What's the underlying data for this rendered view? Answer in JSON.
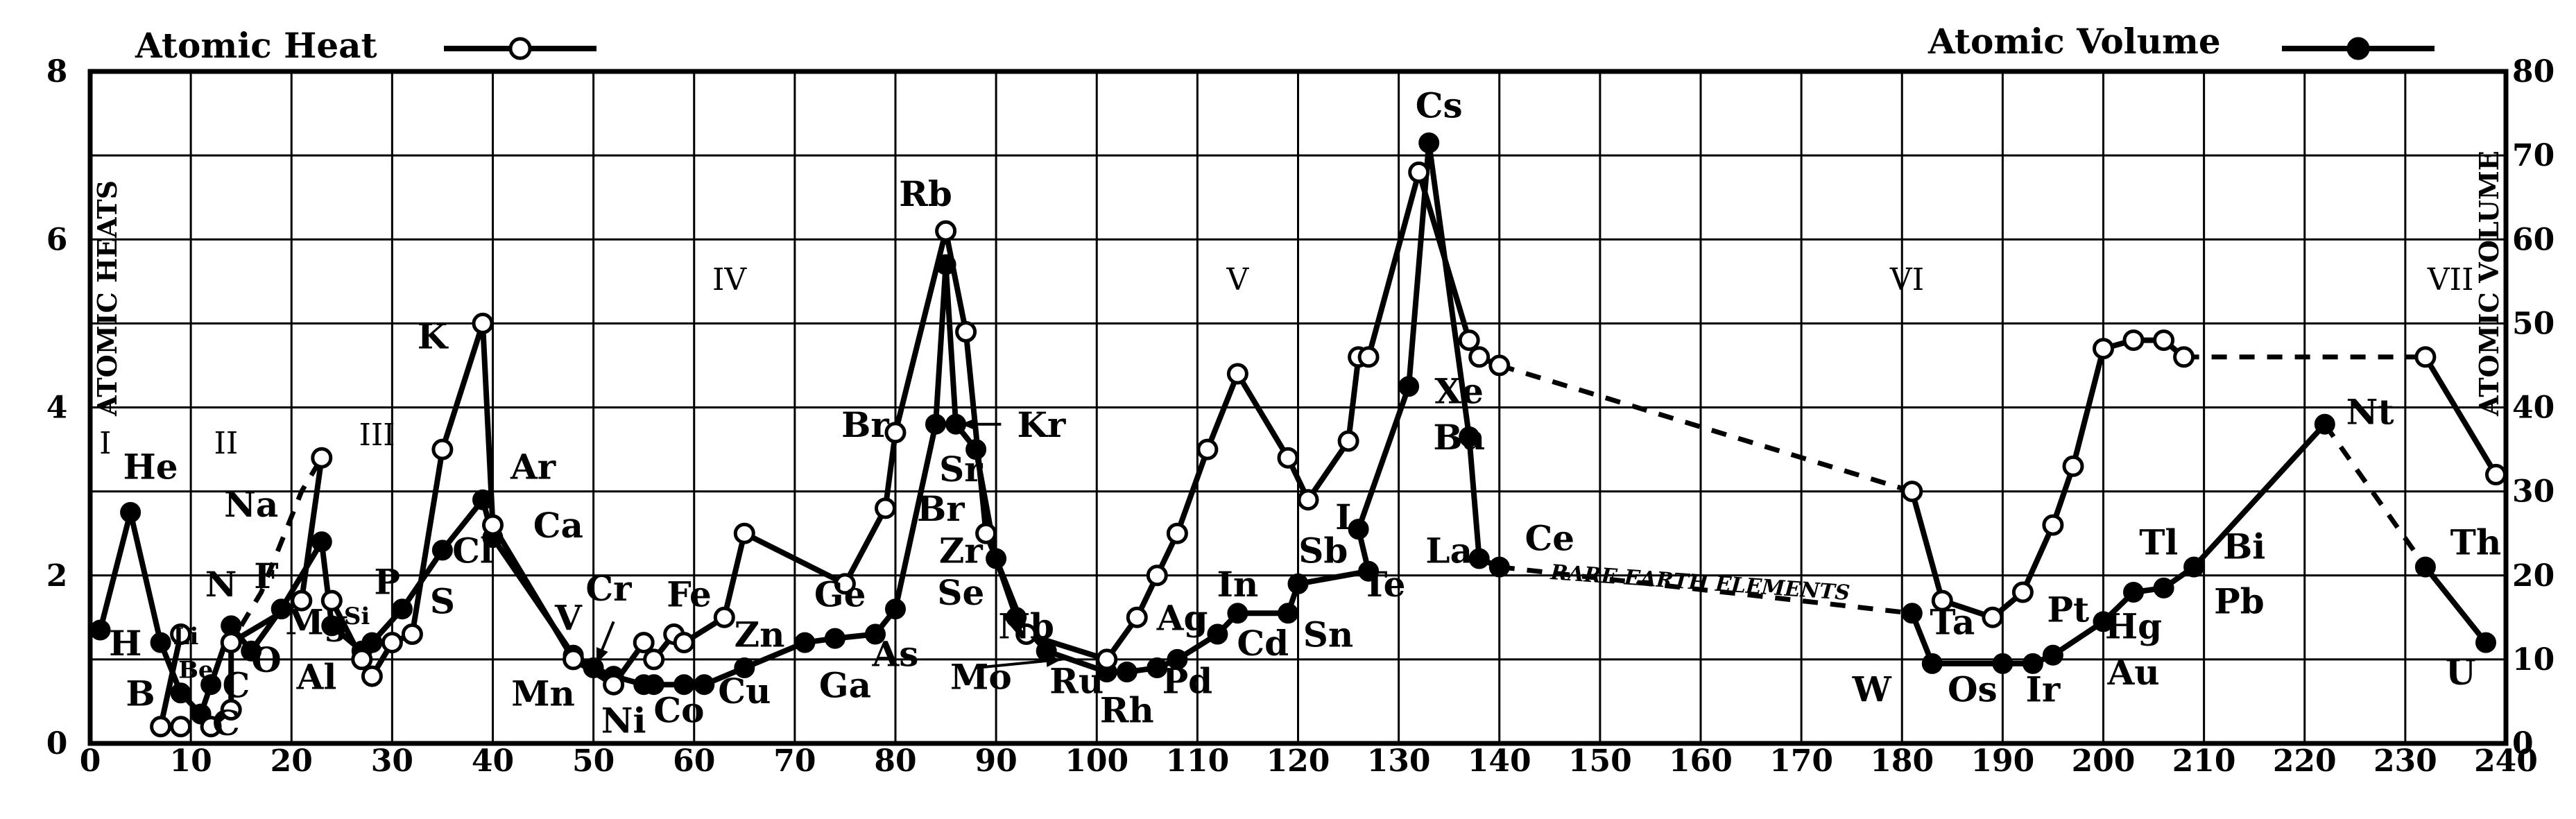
{
  "chart_data": {
    "type": "line",
    "x_range": [
      0,
      240
    ],
    "y_left_range": [
      0,
      8
    ],
    "y_right_range": [
      0,
      80
    ],
    "x_ticks": [
      0,
      10,
      20,
      30,
      40,
      50,
      60,
      70,
      80,
      90,
      100,
      110,
      120,
      130,
      140,
      150,
      160,
      170,
      180,
      190,
      200,
      210,
      220,
      230,
      240
    ],
    "y_left_ticks": [
      0,
      2,
      4,
      6,
      8
    ],
    "y_right_ticks": [
      0,
      10,
      20,
      30,
      40,
      50,
      60,
      70,
      80
    ],
    "ylabel_left": "ATOMIC HEATS",
    "ylabel_right": "ATOMIC VOLUME",
    "grid": true,
    "legend": {
      "heat": "Atomic Heat",
      "volume": "Atomic Volume"
    },
    "groups": [
      "I",
      "II",
      "III",
      "IV",
      "V",
      "VI",
      "VII"
    ],
    "annotation": "RARE EARTH ELEMENTS",
    "series_heat_segments": [
      [
        [
          9,
          1.3
        ],
        [
          7,
          0.2
        ],
        [
          9,
          0.2
        ]
      ],
      [
        [
          12,
          0.2
        ],
        [
          14,
          0.4
        ],
        [
          14,
          1.2
        ],
        [
          21,
          1.7
        ],
        [
          23,
          3.4
        ]
      ],
      [
        [
          24,
          1.7
        ],
        [
          27,
          1.0
        ],
        [
          28,
          0.8
        ],
        [
          30,
          1.2
        ],
        [
          32,
          1.3
        ],
        [
          35,
          3.5
        ],
        [
          39,
          5.0
        ],
        [
          40,
          2.6
        ],
        [
          48,
          1.0
        ],
        [
          52,
          0.7
        ],
        [
          55,
          1.2
        ],
        [
          56,
          1.0
        ],
        [
          58,
          1.3
        ],
        [
          59,
          1.2
        ],
        [
          63,
          1.5
        ],
        [
          65,
          2.5
        ],
        [
          75,
          1.9
        ],
        [
          79,
          2.8
        ],
        [
          80,
          3.7
        ],
        [
          85,
          6.1
        ],
        [
          87,
          4.9
        ],
        [
          89,
          2.5
        ],
        [
          93,
          1.3
        ],
        [
          101,
          1.0
        ],
        [
          104,
          1.5
        ],
        [
          106,
          2.0
        ],
        [
          108,
          2.5
        ],
        [
          111,
          3.5
        ],
        [
          114,
          4.4
        ],
        [
          119,
          3.4
        ],
        [
          121,
          2.9
        ],
        [
          125,
          3.6
        ],
        [
          126,
          4.6
        ],
        [
          127,
          4.6
        ],
        [
          132,
          6.8
        ],
        [
          137,
          4.8
        ],
        [
          138,
          4.6
        ],
        [
          140,
          4.5
        ]
      ],
      [
        [
          181,
          3.0
        ],
        [
          184,
          1.7
        ],
        [
          189,
          1.5
        ],
        [
          192,
          1.8
        ],
        [
          195,
          2.6
        ],
        [
          197,
          3.3
        ],
        [
          200,
          4.7
        ],
        [
          203,
          4.8
        ],
        [
          206,
          4.8
        ],
        [
          208,
          4.6
        ]
      ],
      [
        [
          232,
          4.6
        ],
        [
          239,
          3.2
        ]
      ]
    ],
    "series_heat_dashed": [
      [
        [
          15,
          1.4
        ],
        [
          17,
          1.8
        ],
        [
          21,
          3.0
        ],
        [
          23,
          3.4
        ]
      ],
      [
        [
          140,
          4.5
        ],
        [
          181,
          3.0
        ]
      ],
      [
        [
          208,
          4.6
        ],
        [
          232,
          4.6
        ]
      ]
    ],
    "series_volume_segments": [
      [
        [
          1,
          13.5
        ],
        [
          4,
          27.5
        ],
        [
          7,
          12
        ],
        [
          9,
          6
        ],
        [
          11,
          3.5
        ],
        [
          12,
          7
        ],
        [
          14,
          14
        ],
        [
          16,
          11
        ],
        [
          19,
          16
        ],
        [
          23,
          24
        ],
        [
          24,
          14
        ],
        [
          27,
          11
        ],
        [
          28,
          12
        ],
        [
          31,
          16
        ],
        [
          35,
          23
        ],
        [
          39,
          29
        ],
        [
          40,
          24.5
        ],
        [
          48,
          10.5
        ],
        [
          50,
          9
        ],
        [
          52,
          8
        ],
        [
          55,
          7
        ],
        [
          56,
          7
        ],
        [
          59,
          7
        ],
        [
          61,
          7
        ],
        [
          65,
          9
        ],
        [
          71,
          12
        ],
        [
          74,
          12.5
        ],
        [
          78,
          13
        ],
        [
          80,
          16
        ],
        [
          84,
          38
        ],
        [
          85,
          57
        ],
        [
          86,
          38
        ],
        [
          88,
          35
        ],
        [
          90,
          22
        ],
        [
          92,
          15
        ],
        [
          95,
          11
        ],
        [
          101,
          8.5
        ],
        [
          103,
          8.5
        ],
        [
          106,
          9
        ],
        [
          108,
          10
        ],
        [
          112,
          13
        ],
        [
          114,
          15.5
        ],
        [
          119,
          15.5
        ],
        [
          120,
          19
        ],
        [
          127,
          20.5
        ],
        [
          126,
          25.5
        ],
        [
          131,
          42.5
        ],
        [
          133,
          71.5
        ],
        [
          137,
          36.5
        ],
        [
          138,
          22
        ],
        [
          140,
          21
        ]
      ],
      [
        [
          181,
          15.5
        ],
        [
          183,
          9.5
        ],
        [
          190,
          9.5
        ],
        [
          193,
          9.5
        ],
        [
          195,
          10.5
        ],
        [
          200,
          14.5
        ],
        [
          203,
          18
        ],
        [
          206,
          18.5
        ],
        [
          209,
          21
        ],
        [
          222,
          38
        ]
      ],
      [
        [
          232,
          21
        ],
        [
          238,
          12
        ]
      ]
    ],
    "series_volume_dashed": [
      [
        [
          140,
          21
        ],
        [
          181,
          15.5
        ]
      ],
      [
        [
          222,
          38
        ],
        [
          232,
          21
        ]
      ]
    ],
    "element_labels": [
      {
        "t": "H",
        "x": 3.5,
        "y": 1.05
      },
      {
        "t": "He",
        "x": 6,
        "y": 3.15
      },
      {
        "t": "Li",
        "x": 9.5,
        "y": 1.18,
        "s": 1
      },
      {
        "t": "Be",
        "x": 10.5,
        "y": 0.78,
        "s": 1
      },
      {
        "t": "B",
        "x": 5,
        "y": 0.45
      },
      {
        "t": "C",
        "x": 13.5,
        "y": 0.1
      },
      {
        "t": "C",
        "x": 14.5,
        "y": 0.55
      },
      {
        "t": "N",
        "x": 13,
        "y": 1.75
      },
      {
        "t": "O",
        "x": 17.5,
        "y": 0.85
      },
      {
        "t": "F",
        "x": 17.5,
        "y": 1.85
      },
      {
        "t": "Na",
        "x": 16,
        "y": 2.7
      },
      {
        "t": "Mg",
        "x": 22.5,
        "y": 1.3
      },
      {
        "t": "Al",
        "x": 22.5,
        "y": 0.65
      },
      {
        "t": "Si",
        "x": 26.5,
        "y": 1.42,
        "s": 1
      },
      {
        "t": "P",
        "x": 29.5,
        "y": 1.78
      },
      {
        "t": "S",
        "x": 35,
        "y": 1.55
      },
      {
        "t": "Cl",
        "x": 38,
        "y": 2.15
      },
      {
        "t": "K",
        "x": 34,
        "y": 4.7
      },
      {
        "t": "Ar",
        "x": 44,
        "y": 3.15
      },
      {
        "t": "Ca",
        "x": 46.5,
        "y": 2.45
      },
      {
        "t": "V",
        "x": 47.5,
        "y": 1.35
      },
      {
        "t": "Cr",
        "x": 51.5,
        "y": 1.7
      },
      {
        "t": "Mn",
        "x": 45,
        "y": 0.45
      },
      {
        "t": "Ni",
        "x": 53,
        "y": 0.13
      },
      {
        "t": "Co",
        "x": 58.5,
        "y": 0.25
      },
      {
        "t": "Fe",
        "x": 59.5,
        "y": 1.63
      },
      {
        "t": "Zn",
        "x": 66.5,
        "y": 1.15
      },
      {
        "t": "Cu",
        "x": 65,
        "y": 0.48
      },
      {
        "t": "Ge",
        "x": 74.5,
        "y": 1.63
      },
      {
        "t": "Ga",
        "x": 75,
        "y": 0.55
      },
      {
        "t": "As",
        "x": 80,
        "y": 0.92
      },
      {
        "t": "Se",
        "x": 86.5,
        "y": 1.65
      },
      {
        "t": "Br",
        "x": 77,
        "y": 3.65
      },
      {
        "t": "Br",
        "x": 84.5,
        "y": 2.65
      },
      {
        "t": "Rb",
        "x": 83,
        "y": 6.4
      },
      {
        "t": "Sr",
        "x": 86.5,
        "y": 3.12
      },
      {
        "t": "Kr",
        "x": 94.5,
        "y": 3.65
      },
      {
        "t": "Zr",
        "x": 86.5,
        "y": 2.15
      },
      {
        "t": "Nb",
        "x": 93,
        "y": 1.25
      },
      {
        "t": "Mo",
        "x": 88.5,
        "y": 0.65
      },
      {
        "t": "Ru",
        "x": 98,
        "y": 0.6
      },
      {
        "t": "Rh",
        "x": 103,
        "y": 0.25
      },
      {
        "t": "Pd",
        "x": 109,
        "y": 0.6
      },
      {
        "t": "Ag",
        "x": 108.5,
        "y": 1.35
      },
      {
        "t": "In",
        "x": 114,
        "y": 1.75
      },
      {
        "t": "Cd",
        "x": 116.5,
        "y": 1.05
      },
      {
        "t": "Sn",
        "x": 123,
        "y": 1.15
      },
      {
        "t": "Sb",
        "x": 122.5,
        "y": 2.15
      },
      {
        "t": "I",
        "x": 124.5,
        "y": 2.55
      },
      {
        "t": "Te",
        "x": 128.5,
        "y": 1.75
      },
      {
        "t": "Cs",
        "x": 134,
        "y": 7.45
      },
      {
        "t": "Xe",
        "x": 136,
        "y": 4.05
      },
      {
        "t": "Ba",
        "x": 136,
        "y": 3.5
      },
      {
        "t": "La",
        "x": 135,
        "y": 2.15
      },
      {
        "t": "Ce",
        "x": 145,
        "y": 2.3
      },
      {
        "t": "W",
        "x": 177,
        "y": 0.5
      },
      {
        "t": "Ta",
        "x": 185,
        "y": 1.3
      },
      {
        "t": "Os",
        "x": 187,
        "y": 0.5
      },
      {
        "t": "Ir",
        "x": 194,
        "y": 0.5
      },
      {
        "t": "Pt",
        "x": 196.5,
        "y": 1.45
      },
      {
        "t": "Hg",
        "x": 203,
        "y": 1.25
      },
      {
        "t": "Au",
        "x": 203,
        "y": 0.7
      },
      {
        "t": "Tl",
        "x": 205.5,
        "y": 2.25
      },
      {
        "t": "Bi",
        "x": 214,
        "y": 2.2
      },
      {
        "t": "Pb",
        "x": 213.5,
        "y": 1.55
      },
      {
        "t": "Nt",
        "x": 226.5,
        "y": 3.8
      },
      {
        "t": "Th",
        "x": 237,
        "y": 2.25
      },
      {
        "t": "U",
        "x": 235.5,
        "y": 0.7
      }
    ],
    "group_positions": [
      {
        "t": "I",
        "x": 1.5,
        "y": 3.45
      },
      {
        "t": "II",
        "x": 13.5,
        "y": 3.45
      },
      {
        "t": "III",
        "x": 28.5,
        "y": 3.55
      },
      {
        "t": "IV",
        "x": 63.5,
        "y": 5.4
      },
      {
        "t": "V",
        "x": 114,
        "y": 5.4
      },
      {
        "t": "VI",
        "x": 180.5,
        "y": 5.4
      },
      {
        "t": "VII",
        "x": 234.5,
        "y": 5.4
      }
    ],
    "arrows": [
      {
        "from": [
          52,
          1.45
        ],
        "to": [
          50.3,
          0.95
        ]
      },
      {
        "from": [
          90.5,
          3.8
        ],
        "to": [
          86.5,
          3.8
        ]
      },
      {
        "from": [
          88,
          0.9
        ],
        "to": [
          96.5,
          1.0
        ]
      }
    ]
  }
}
